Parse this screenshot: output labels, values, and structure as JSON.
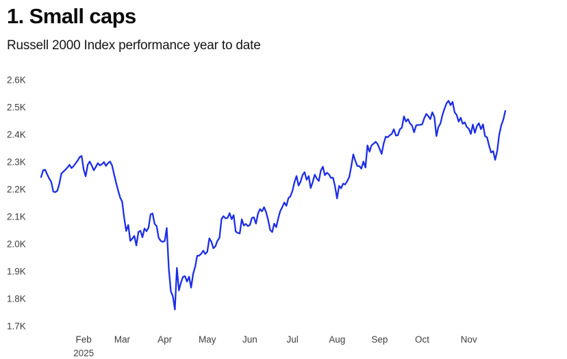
{
  "header": {
    "title": "1. Small caps",
    "subtitle": "Russell 2000 Index performance year to date"
  },
  "chart_data": {
    "type": "line",
    "title": "1. Small caps",
    "subtitle": "Russell 2000 Index performance year to date",
    "series_name": "Russell 2000 Index",
    "line_color": "#1b2de6",
    "axis_label_color": "#3d3d3d",
    "background_color": "#ffffff",
    "grid": false,
    "legend": false,
    "ylim": [
      1700,
      2600
    ],
    "y_ticks": [
      {
        "value": 1700,
        "label": "1.7K"
      },
      {
        "value": 1800,
        "label": "1.8K"
      },
      {
        "value": 1900,
        "label": "1.9K"
      },
      {
        "value": 2000,
        "label": "2.0K"
      },
      {
        "value": 2100,
        "label": "2.1K"
      },
      {
        "value": 2200,
        "label": "2.2K"
      },
      {
        "value": 2300,
        "label": "2.3K"
      },
      {
        "value": 2400,
        "label": "2.4K"
      },
      {
        "value": 2500,
        "label": "2.5K"
      },
      {
        "value": 2600,
        "label": "2.6K"
      }
    ],
    "x_extent": 252,
    "x_ticks": [
      {
        "label": "Feb",
        "index": 21
      },
      {
        "label": "Mar",
        "index": 40
      },
      {
        "label": "Apr",
        "index": 61
      },
      {
        "label": "May",
        "index": 82
      },
      {
        "label": "Jun",
        "index": 103
      },
      {
        "label": "Jul",
        "index": 124
      },
      {
        "label": "Aug",
        "index": 146
      },
      {
        "label": "Sep",
        "index": 167
      },
      {
        "label": "Oct",
        "index": 188
      },
      {
        "label": "Nov",
        "index": 211
      }
    ],
    "year_label": "2025",
    "values": [
      2245,
      2270,
      2272,
      2255,
      2240,
      2228,
      2192,
      2190,
      2195,
      2220,
      2258,
      2265,
      2272,
      2280,
      2290,
      2278,
      2285,
      2295,
      2305,
      2318,
      2322,
      2272,
      2248,
      2290,
      2302,
      2287,
      2270,
      2282,
      2296,
      2288,
      2292,
      2300,
      2286,
      2296,
      2302,
      2288,
      2255,
      2225,
      2196,
      2170,
      2155,
      2095,
      2048,
      2070,
      2012,
      2020,
      2030,
      1995,
      2044,
      2049,
      2025,
      2057,
      2047,
      2060,
      2109,
      2112,
      2074,
      2066,
      2023,
      2012,
      2008,
      2012,
      2059,
      1910,
      1827,
      1810,
      1761,
      1913,
      1831,
      1860,
      1880,
      1883,
      1863,
      1881,
      1841,
      1891,
      1917,
      1957,
      1958,
      1965,
      1976,
      1964,
      1972,
      2021,
      2009,
      1985,
      1992,
      2012,
      2023,
      2092,
      2102,
      2094,
      2096,
      2113,
      2091,
      2106,
      2046,
      2041,
      2039,
      2091,
      2068,
      2074,
      2066,
      2070,
      2096,
      2098,
      2075,
      2112,
      2128,
      2120,
      2135,
      2117,
      2088,
      2052,
      2044,
      2075,
      2062,
      2095,
      2121,
      2136,
      2152,
      2140,
      2168,
      2175,
      2195,
      2226,
      2249,
      2214,
      2228,
      2253,
      2263,
      2235,
      2249,
      2205,
      2227,
      2254,
      2240,
      2231,
      2269,
      2283,
      2252,
      2261,
      2255,
      2242,
      2243,
      2212,
      2167,
      2213,
      2204,
      2221,
      2218,
      2230,
      2245,
      2283,
      2328,
      2305,
      2286,
      2285,
      2276,
      2302,
      2280,
      2361,
      2338,
      2361,
      2367,
      2374,
      2366,
      2348,
      2330,
      2368,
      2393,
      2391,
      2398,
      2403,
      2420,
      2397,
      2398,
      2420,
      2426,
      2467,
      2448,
      2457,
      2441,
      2434,
      2409,
      2434,
      2436,
      2436,
      2438,
      2460,
      2476,
      2468,
      2457,
      2482,
      2465,
      2395,
      2428,
      2441,
      2472,
      2495,
      2515,
      2524,
      2508,
      2520,
      2482,
      2472,
      2448,
      2462,
      2440,
      2445,
      2428,
      2422,
      2403,
      2437,
      2407,
      2432,
      2442,
      2420,
      2438,
      2395,
      2390,
      2360,
      2335,
      2340,
      2308,
      2341,
      2400,
      2434,
      2455,
      2487
    ]
  }
}
